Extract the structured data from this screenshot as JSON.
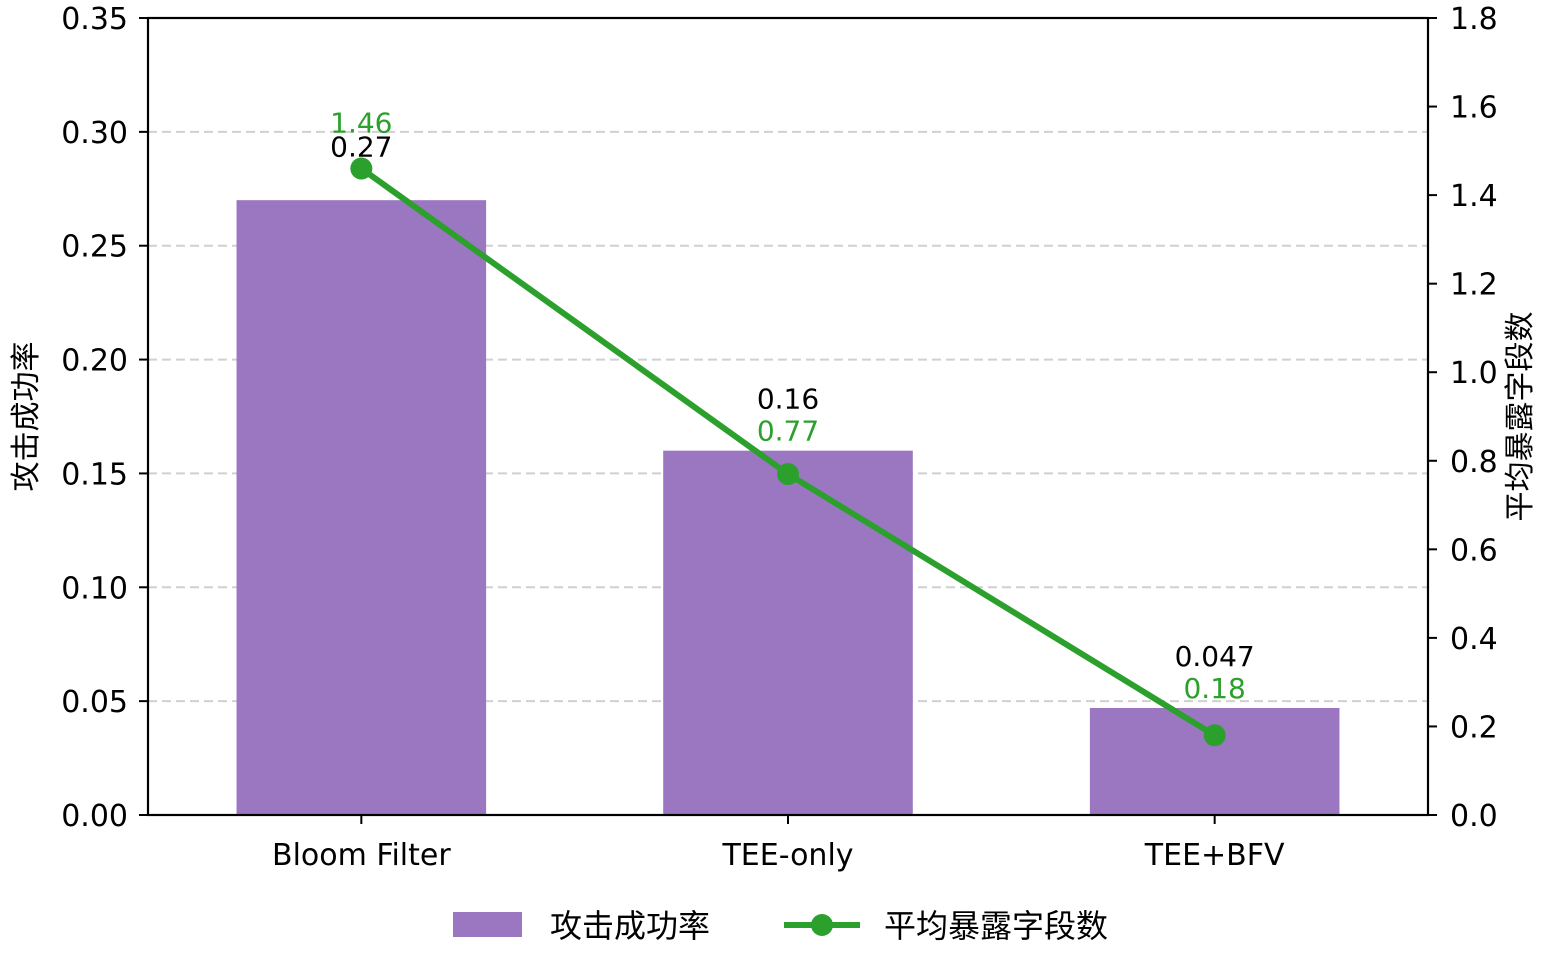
{
  "chart_data": {
    "type": "bar",
    "categories": [
      "Bloom Filter",
      "TEE-only",
      "TEE+BFV"
    ],
    "series": [
      {
        "name": "攻击成功率",
        "kind": "bar",
        "axis": "left",
        "color": "#9b77c2",
        "values": [
          0.27,
          0.16,
          0.047
        ],
        "value_labels": [
          "0.27",
          "0.16",
          "0.047"
        ]
      },
      {
        "name": "平均暴露字段数",
        "kind": "line",
        "axis": "right",
        "color": "#2ca02c",
        "values": [
          1.46,
          0.77,
          0.18
        ],
        "value_labels": [
          "1.46",
          "0.77",
          "0.18"
        ]
      }
    ],
    "ylabel": "攻击成功率",
    "y2label": "平均暴露字段数",
    "ylim": [
      0,
      0.35
    ],
    "y2lim": [
      0,
      1.8
    ],
    "yticks": [
      "0.00",
      "0.05",
      "0.10",
      "0.15",
      "0.20",
      "0.25",
      "0.30",
      "0.35"
    ],
    "y2ticks": [
      "0.0",
      "0.2",
      "0.4",
      "0.6",
      "0.8",
      "1.0",
      "1.2",
      "1.4",
      "1.6",
      "1.8"
    ],
    "grid": "horizontal dashed",
    "legend_placement": "bottom-center"
  }
}
